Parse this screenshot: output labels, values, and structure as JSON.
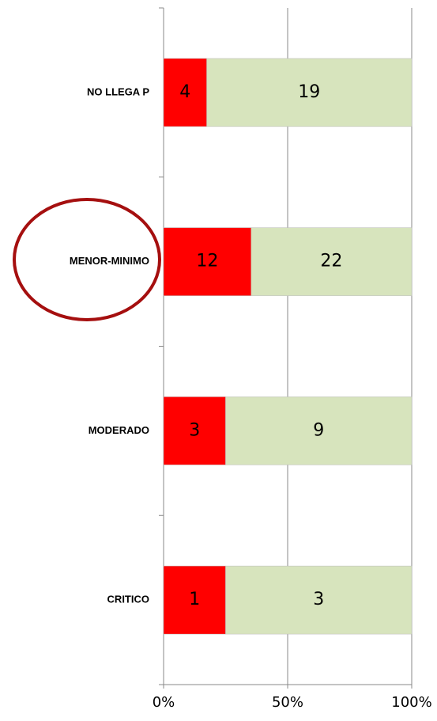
{
  "chart_data": {
    "type": "bar",
    "orientation": "horizontal",
    "stacking": "percent",
    "categories": [
      "NO LLEGA P",
      "MENOR-MINIMO",
      "MODERADO",
      "CRITICO"
    ],
    "series": [
      {
        "color": "#ff0000",
        "values": [
          4,
          12,
          3,
          1
        ]
      },
      {
        "color": "#d7e4bd",
        "values": [
          19,
          22,
          9,
          3
        ]
      }
    ],
    "xlim": [
      0,
      100
    ],
    "xticks": [
      {
        "value": 0,
        "label": "0%"
      },
      {
        "value": 50,
        "label": "50%"
      },
      {
        "value": 100,
        "label": "100%"
      }
    ],
    "grid": true
  }
}
